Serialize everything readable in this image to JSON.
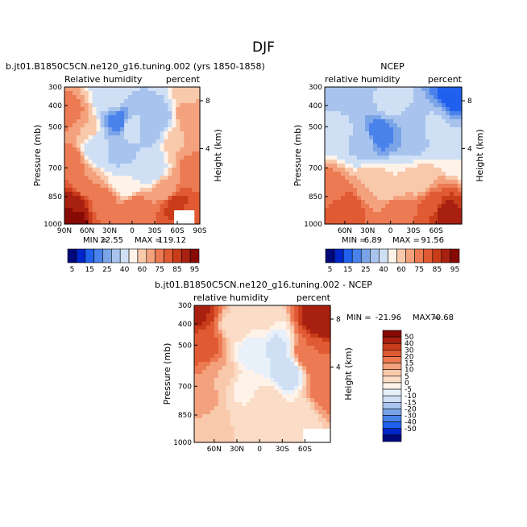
{
  "figure": {
    "title": "DJF"
  },
  "colors": {
    "rh_palette": [
      "#00087a",
      "#0025c8",
      "#2060ee",
      "#4a82ec",
      "#7aa4e8",
      "#a8c4ee",
      "#cfe0f5",
      "#fff3e9",
      "#f9c9ac",
      "#f4a27e",
      "#ec7a52",
      "#e05a33",
      "#c93c1a",
      "#a82010",
      "#870a05"
    ],
    "diff_palette": [
      "#00087a",
      "#0025c8",
      "#2060ee",
      "#4a82ec",
      "#7aa4e8",
      "#a8c4ee",
      "#cfe0f5",
      "#e8f0fa",
      "#fff3e9",
      "#fadcc7",
      "#f9c9ac",
      "#f4a27e",
      "#ec7a52",
      "#e05a33",
      "#c93c1a",
      "#a82010",
      "#870a05"
    ]
  },
  "chart_data": [
    {
      "id": "model",
      "type": "heatmap",
      "title": "b.jt01.B1850C5CN.ne120_g16.tuning.002 (yrs 1850-1858)",
      "left_label": "Relative humidity",
      "right_label": "percent",
      "ylabel": "Pressure (mb)",
      "y2label": "Height (km)",
      "y_ticks": [
        "300",
        "400",
        "500",
        "700",
        "850",
        "1000"
      ],
      "y2_ticks": [
        "8",
        "4"
      ],
      "x_ticks": [
        "90N",
        "60N",
        "30N",
        "0",
        "30S",
        "60S",
        "90S"
      ],
      "min_label": "MIN =",
      "min_value": "22.55",
      "max_label": "MAX =",
      "max_value": "119.12",
      "levels": [
        "5",
        "15",
        "25",
        "40",
        "60",
        "75",
        "85",
        "95"
      ],
      "field": [
        {
          "x": 0.02,
          "y": 0.95,
          "v": 110
        },
        {
          "x": 0.06,
          "y": 0.85,
          "v": 92
        },
        {
          "x": 0.03,
          "y": 0.55,
          "v": 80
        },
        {
          "x": 0.05,
          "y": 0.2,
          "v": 78
        },
        {
          "x": 0.15,
          "y": 0.3,
          "v": 70
        },
        {
          "x": 0.15,
          "y": 0.7,
          "v": 75
        },
        {
          "x": 0.24,
          "y": 0.45,
          "v": 55
        },
        {
          "x": 0.3,
          "y": 0.85,
          "v": 78
        },
        {
          "x": 0.35,
          "y": 0.08,
          "v": 55
        },
        {
          "x": 0.4,
          "y": 0.25,
          "v": 28
        },
        {
          "x": 0.4,
          "y": 0.45,
          "v": 40
        },
        {
          "x": 0.45,
          "y": 0.7,
          "v": 60
        },
        {
          "x": 0.5,
          "y": 0.3,
          "v": 60
        },
        {
          "x": 0.52,
          "y": 0.9,
          "v": 80
        },
        {
          "x": 0.6,
          "y": 0.3,
          "v": 40
        },
        {
          "x": 0.65,
          "y": 0.6,
          "v": 55
        },
        {
          "x": 0.7,
          "y": 0.2,
          "v": 45
        },
        {
          "x": 0.75,
          "y": 0.75,
          "v": 72
        },
        {
          "x": 0.82,
          "y": 0.85,
          "v": 88
        },
        {
          "x": 0.84,
          "y": 0.4,
          "v": 70
        },
        {
          "x": 0.92,
          "y": 0.2,
          "v": 75
        },
        {
          "x": 0.95,
          "y": 0.6,
          "v": 78
        },
        {
          "x": 0.96,
          "y": 0.92,
          "v": 82
        },
        {
          "x": 0.9,
          "y": 0.05,
          "v": 68
        }
      ]
    },
    {
      "id": "obs",
      "type": "heatmap",
      "title": "NCEP",
      "left_label": "relative humidity",
      "right_label": "percent",
      "ylabel": "Pressure (mb)",
      "y2label": "Height (km)",
      "y_ticks": [
        "300",
        "400",
        "500",
        "700",
        "850",
        "1000"
      ],
      "y2_ticks": [
        "8",
        "4"
      ],
      "x_ticks": [
        "60N",
        "30N",
        "0",
        "30S",
        "60S"
      ],
      "min_label": "MIN =",
      "min_value": "6.89",
      "max_label": "MAX =",
      "max_value": "91.56",
      "levels": [
        "5",
        "15",
        "25",
        "40",
        "60",
        "75",
        "85",
        "95"
      ],
      "field": [
        {
          "x": 0.02,
          "y": 0.05,
          "v": 45
        },
        {
          "x": 0.08,
          "y": 0.3,
          "v": 58
        },
        {
          "x": 0.06,
          "y": 0.75,
          "v": 78
        },
        {
          "x": 0.15,
          "y": 0.9,
          "v": 85
        },
        {
          "x": 0.22,
          "y": 0.1,
          "v": 40
        },
        {
          "x": 0.28,
          "y": 0.4,
          "v": 48
        },
        {
          "x": 0.35,
          "y": 0.7,
          "v": 70
        },
        {
          "x": 0.4,
          "y": 0.35,
          "v": 25
        },
        {
          "x": 0.48,
          "y": 0.1,
          "v": 55
        },
        {
          "x": 0.5,
          "y": 0.7,
          "v": 65
        },
        {
          "x": 0.55,
          "y": 0.92,
          "v": 80
        },
        {
          "x": 0.62,
          "y": 0.35,
          "v": 40
        },
        {
          "x": 0.7,
          "y": 0.7,
          "v": 68
        },
        {
          "x": 0.78,
          "y": 0.85,
          "v": 82
        },
        {
          "x": 0.8,
          "y": 0.3,
          "v": 52
        },
        {
          "x": 0.88,
          "y": 0.92,
          "v": 92
        },
        {
          "x": 0.95,
          "y": 0.05,
          "v": 20
        },
        {
          "x": 0.97,
          "y": 0.5,
          "v": 60
        }
      ]
    },
    {
      "id": "diff",
      "type": "heatmap",
      "title": "b.jt01.B1850C5CN.ne120_g16.tuning.002 - NCEP",
      "left_label": "relative humidity",
      "right_label": "percent",
      "ylabel": "Pressure (mb)",
      "y2label": "Height (km)",
      "y_ticks": [
        "300",
        "400",
        "500",
        "700",
        "850",
        "1000"
      ],
      "y2_ticks": [
        "8",
        "4"
      ],
      "x_ticks": [
        "60N",
        "30N",
        "0",
        "30S",
        "60S"
      ],
      "min_label": "MIN =",
      "min_value": "-21.96",
      "max_label": "MAX =",
      "max_value": "70.68",
      "levels": [
        "50",
        "40",
        "30",
        "20",
        "15",
        "10",
        "5",
        "0",
        "-5",
        "-10",
        "-15",
        "-20",
        "-30",
        "-40",
        "-50"
      ],
      "field": [
        {
          "x": 0.02,
          "y": 0.05,
          "v": 52
        },
        {
          "x": 0.08,
          "y": 0.3,
          "v": 35
        },
        {
          "x": 0.05,
          "y": 0.7,
          "v": 18
        },
        {
          "x": 0.15,
          "y": 0.9,
          "v": 10
        },
        {
          "x": 0.2,
          "y": 0.5,
          "v": 15
        },
        {
          "x": 0.3,
          "y": 0.15,
          "v": 8
        },
        {
          "x": 0.35,
          "y": 0.6,
          "v": 4
        },
        {
          "x": 0.42,
          "y": 0.35,
          "v": -4
        },
        {
          "x": 0.5,
          "y": 0.1,
          "v": 6
        },
        {
          "x": 0.55,
          "y": 0.7,
          "v": 8
        },
        {
          "x": 0.6,
          "y": 0.3,
          "v": -6
        },
        {
          "x": 0.68,
          "y": 0.5,
          "v": -10
        },
        {
          "x": 0.75,
          "y": 0.8,
          "v": 5
        },
        {
          "x": 0.85,
          "y": 0.35,
          "v": 30
        },
        {
          "x": 0.93,
          "y": 0.1,
          "v": 60
        },
        {
          "x": 0.95,
          "y": 0.6,
          "v": 25
        }
      ]
    }
  ]
}
